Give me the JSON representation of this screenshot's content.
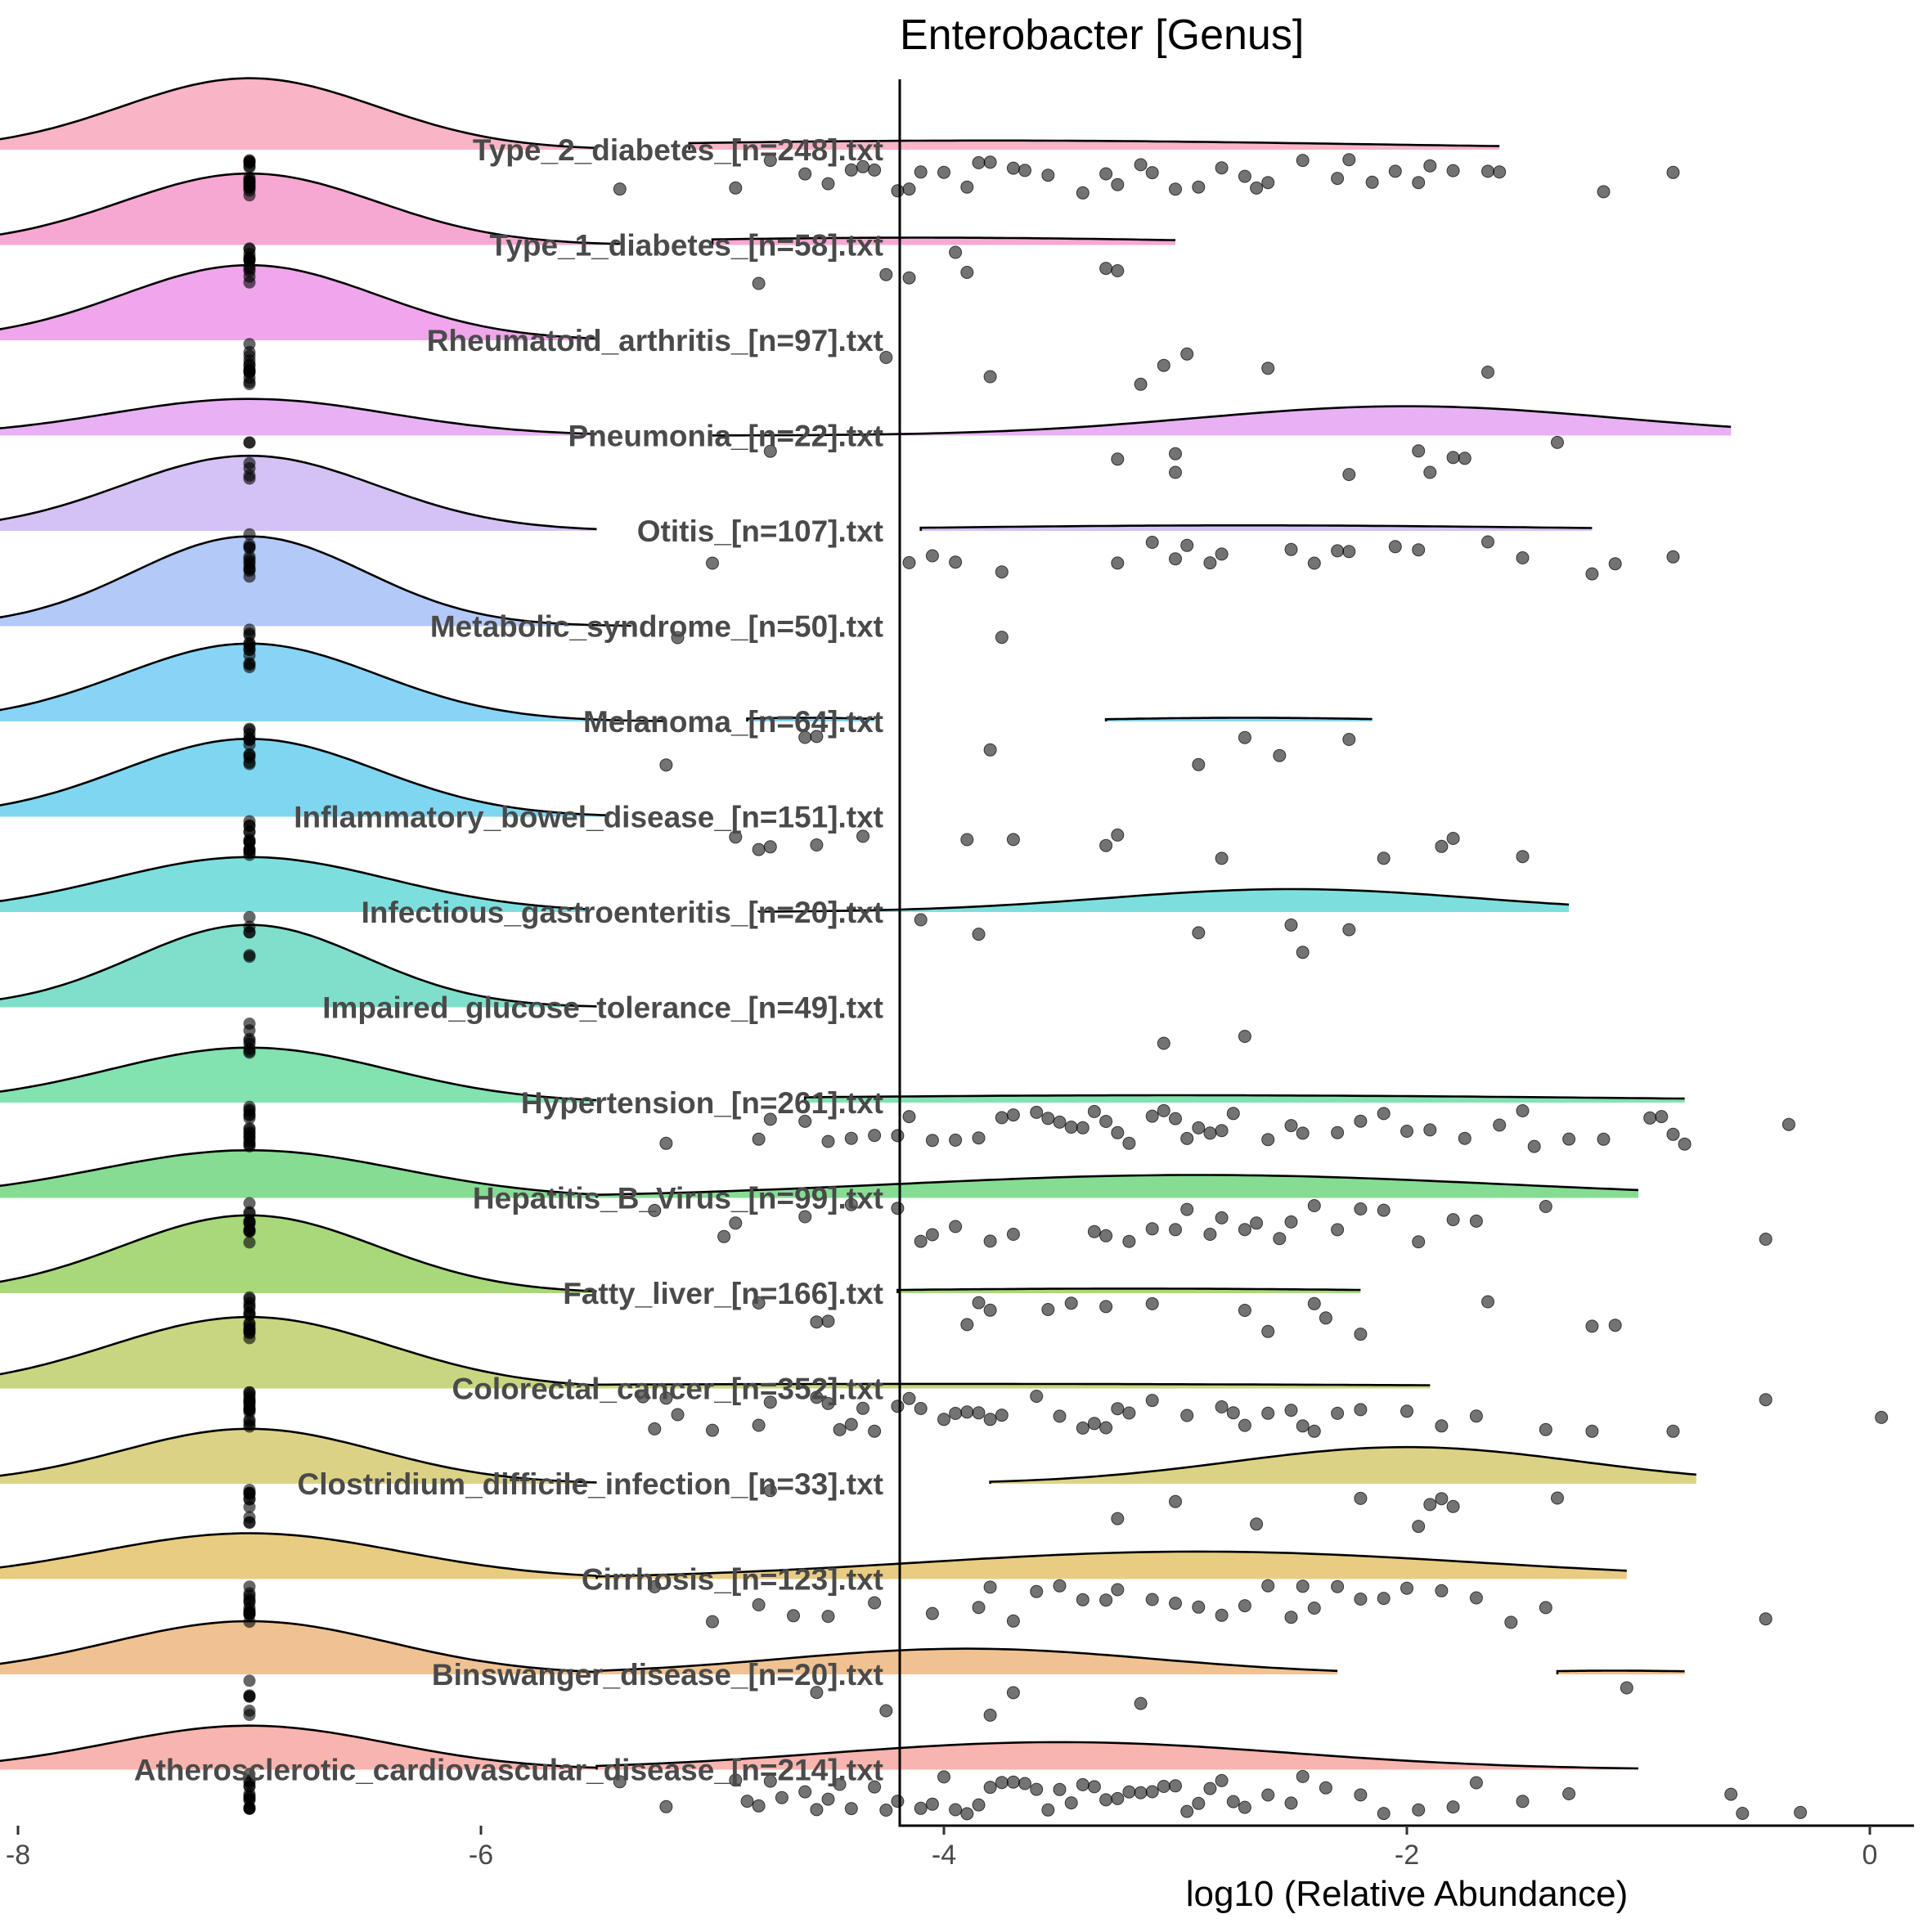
{
  "chart_data": {
    "type": "raincloud",
    "title": "Enterobacter [Genus]",
    "xlabel": "log10 (Relative Abundance)",
    "ylabel": "",
    "xlim": [
      -8.4,
      0.4
    ],
    "xticks": [
      -8,
      -6,
      -4,
      -2,
      0
    ],
    "xtick_labels": [
      "-8",
      "-6",
      "-4",
      "-2",
      "0"
    ],
    "zero_value": -7,
    "categories": [
      {
        "label": "Type_2_diabetes_[n=248].txt",
        "color": "#f9b4c6",
        "zero_count": 18,
        "density": [
          {
            "center": -7,
            "sd": 0.55,
            "h": 0.78,
            "from": -8.3,
            "to": -5.5
          },
          {
            "center": -3.8,
            "sd": 1.6,
            "h": 0.1,
            "from": -5.1,
            "to": -1.6
          }
        ],
        "points": [
          -5.4,
          -4.9,
          -4.75,
          -4.6,
          -4.5,
          -4.4,
          -4.35,
          -4.3,
          -4.2,
          -4.15,
          -4.1,
          -4.0,
          -3.9,
          -3.85,
          -3.8,
          -3.7,
          -3.65,
          -3.55,
          -3.4,
          -3.3,
          -3.25,
          -3.15,
          -3.1,
          -3.0,
          -2.9,
          -2.8,
          -2.7,
          -2.65,
          -2.6,
          -2.45,
          -2.3,
          -2.25,
          -2.15,
          -2.05,
          -1.95,
          -1.9,
          -1.8,
          -1.65,
          -1.6,
          -1.15,
          -0.85
        ]
      },
      {
        "label": "Type_1_diabetes_[n=58].txt",
        "color": "#f7a8d2",
        "zero_count": 12,
        "density": [
          {
            "center": -7,
            "sd": 0.55,
            "h": 0.78,
            "from": -8.3,
            "to": -5.4
          },
          {
            "center": -4.1,
            "sd": 1.2,
            "h": 0.08,
            "from": -5.0,
            "to": -3.0
          }
        ],
        "points": [
          -4.8,
          -4.25,
          -4.15,
          -3.95,
          -3.9,
          -3.3,
          -3.25
        ]
      },
      {
        "label": "Rheumatoid_arthritis_[n=97].txt",
        "color": "#efa6ea",
        "zero_count": 14,
        "density": [
          {
            "center": -7,
            "sd": 0.55,
            "h": 0.82,
            "from": -8.3,
            "to": -5.5
          }
        ],
        "points": [
          -4.25,
          -3.8,
          -3.15,
          -3.05,
          -2.95,
          -2.6,
          -1.65
        ]
      },
      {
        "label": "Pneumonia_[n=22].txt",
        "color": "#e7b1f4",
        "zero_count": 6,
        "density": [
          {
            "center": -7,
            "sd": 0.6,
            "h": 0.4,
            "from": -8.3,
            "to": -5.5
          },
          {
            "center": -2.0,
            "sd": 0.9,
            "h": 0.32,
            "from": -5.0,
            "to": -0.6
          }
        ],
        "points": [
          -4.75,
          -3.25,
          -3.0,
          -3.0,
          -2.25,
          -1.95,
          -1.9,
          -1.8,
          -1.75,
          -1.35
        ]
      },
      {
        "label": "Otitis_[n=107].txt",
        "color": "#d3c2f3",
        "zero_count": 12,
        "density": [
          {
            "center": -7,
            "sd": 0.55,
            "h": 0.82,
            "from": -8.3,
            "to": -5.5
          },
          {
            "center": -2.7,
            "sd": 1.3,
            "h": 0.06,
            "from": -4.1,
            "to": -1.2
          }
        ],
        "points": [
          -5.0,
          -4.15,
          -4.05,
          -3.95,
          -3.75,
          -3.25,
          -3.1,
          -3.0,
          -2.95,
          -2.85,
          -2.8,
          -2.5,
          -2.4,
          -2.3,
          -2.25,
          -2.05,
          -1.95,
          -1.65,
          -1.5,
          -1.2,
          -1.1,
          -0.85
        ]
      },
      {
        "label": "Metabolic_syndrome_[n=50].txt",
        "color": "#b3c9f7",
        "zero_count": 12,
        "density": [
          {
            "center": -7,
            "sd": 0.5,
            "h": 0.98,
            "from": -8.3,
            "to": -5.35
          }
        ],
        "points": [
          -5.15,
          -3.75
        ]
      },
      {
        "label": "Melanoma_[n=64].txt",
        "color": "#88d4f7",
        "zero_count": 12,
        "density": [
          {
            "center": -7,
            "sd": 0.55,
            "h": 0.85,
            "from": -8.3,
            "to": -5.2
          },
          {
            "center": -4.6,
            "sd": 0.35,
            "h": 0.04,
            "from": -4.85,
            "to": -4.3
          },
          {
            "center": -2.7,
            "sd": 0.6,
            "h": 0.04,
            "from": -3.3,
            "to": -2.15
          }
        ],
        "points": [
          -5.2,
          -4.55,
          -4.6,
          -3.8,
          -2.9,
          -2.7,
          -2.55,
          -2.25
        ]
      },
      {
        "label": "Inflammatory_bowel_disease_[n=151].txt",
        "color": "#7fd6f0",
        "zero_count": 14,
        "density": [
          {
            "center": -7,
            "sd": 0.55,
            "h": 0.85,
            "from": -8.3,
            "to": -5.45
          }
        ],
        "points": [
          -4.9,
          -4.8,
          -4.75,
          -4.55,
          -4.35,
          -3.9,
          -3.7,
          -3.3,
          -3.25,
          -2.8,
          -2.1,
          -1.85,
          -1.8,
          -1.5
        ]
      },
      {
        "label": "Infectious_gastroenteritis_[n=20].txt",
        "color": "#7ddfdd",
        "zero_count": 6,
        "density": [
          {
            "center": -7,
            "sd": 0.6,
            "h": 0.6,
            "from": -8.3,
            "to": -5.55
          },
          {
            "center": -2.5,
            "sd": 0.8,
            "h": 0.25,
            "from": -4.8,
            "to": -1.3
          }
        ],
        "points": [
          -4.1,
          -3.85,
          -2.9,
          -2.5,
          -2.45,
          -2.25
        ]
      },
      {
        "label": "Impaired_glucose_tolerance_[n=49].txt",
        "color": "#7fdfca",
        "zero_count": 8,
        "density": [
          {
            "center": -7,
            "sd": 0.5,
            "h": 0.9,
            "from": -8.3,
            "to": -5.5
          }
        ],
        "points": [
          -3.05,
          -2.7
        ]
      },
      {
        "label": "Hypertension_[n=261].txt",
        "color": "#82e2b0",
        "zero_count": 16,
        "density": [
          {
            "center": -7,
            "sd": 0.6,
            "h": 0.6,
            "from": -8.3,
            "to": -5.5
          },
          {
            "center": -3.0,
            "sd": 2.0,
            "h": 0.08,
            "from": -4.6,
            "to": -0.8
          }
        ],
        "points": [
          -5.2,
          -4.8,
          -4.75,
          -4.6,
          -4.5,
          -4.4,
          -4.3,
          -4.2,
          -4.15,
          -4.05,
          -3.95,
          -3.85,
          -3.75,
          -3.7,
          -3.6,
          -3.55,
          -3.5,
          -3.45,
          -3.4,
          -3.35,
          -3.3,
          -3.25,
          -3.2,
          -3.1,
          -3.05,
          -3.0,
          -2.95,
          -2.9,
          -2.85,
          -2.8,
          -2.75,
          -2.6,
          -2.5,
          -2.45,
          -2.3,
          -2.2,
          -2.1,
          -2.0,
          -1.9,
          -1.75,
          -1.6,
          -1.5,
          -1.45,
          -1.3,
          -1.15,
          -0.95,
          -0.9,
          -0.85,
          -0.8,
          -0.35
        ]
      },
      {
        "label": "Hepatitis_B_Virus_[n=99].txt",
        "color": "#85dc92",
        "zero_count": 12,
        "density": [
          {
            "center": -7,
            "sd": 0.65,
            "h": 0.52,
            "from": -8.3,
            "to": -5.5
          },
          {
            "center": -2.9,
            "sd": 1.3,
            "h": 0.25,
            "from": -5.5,
            "to": -1.0
          }
        ],
        "points": [
          -5.25,
          -4.95,
          -4.9,
          -4.6,
          -4.4,
          -4.2,
          -4.1,
          -4.05,
          -3.95,
          -3.8,
          -3.7,
          -3.35,
          -3.3,
          -3.2,
          -3.1,
          -3.0,
          -2.95,
          -2.85,
          -2.8,
          -2.7,
          -2.65,
          -2.55,
          -2.5,
          -2.4,
          -2.3,
          -2.2,
          -2.1,
          -1.95,
          -1.8,
          -1.7,
          -1.4,
          -0.45
        ]
      },
      {
        "label": "Fatty_liver_[n=166].txt",
        "color": "#a8d87a",
        "zero_count": 16,
        "density": [
          {
            "center": -7,
            "sd": 0.55,
            "h": 0.85,
            "from": -8.3,
            "to": -5.5
          },
          {
            "center": -3.2,
            "sd": 1.2,
            "h": 0.05,
            "from": -4.2,
            "to": -2.2
          }
        ],
        "points": [
          -4.8,
          -4.55,
          -4.5,
          -3.9,
          -3.85,
          -3.8,
          -3.55,
          -3.45,
          -3.3,
          -3.1,
          -2.7,
          -2.6,
          -2.4,
          -2.35,
          -2.2,
          -1.65,
          -1.2,
          -1.1
        ]
      },
      {
        "label": "Colorectal_cancer_[n=352].txt",
        "color": "#c9d680",
        "zero_count": 18,
        "density": [
          {
            "center": -7,
            "sd": 0.6,
            "h": 0.78,
            "from": -8.3,
            "to": -5.5
          },
          {
            "center": -4.0,
            "sd": 2.5,
            "h": 0.05,
            "from": -5.5,
            "to": -1.9
          }
        ],
        "points": [
          -5.3,
          -5.25,
          -5.2,
          -5.15,
          -5.0,
          -4.8,
          -4.75,
          -4.55,
          -4.5,
          -4.45,
          -4.4,
          -4.35,
          -4.3,
          -4.2,
          -4.15,
          -4.1,
          -4.0,
          -3.95,
          -3.9,
          -3.85,
          -3.8,
          -3.75,
          -3.6,
          -3.5,
          -3.4,
          -3.35,
          -3.3,
          -3.25,
          -3.2,
          -3.1,
          -2.95,
          -2.8,
          -2.75,
          -2.7,
          -2.6,
          -2.5,
          -2.45,
          -2.4,
          -2.3,
          -2.2,
          -2.0,
          -1.85,
          -1.7,
          -1.4,
          -1.2,
          -0.85,
          -0.45,
          0.05
        ]
      },
      {
        "label": "Clostridium_difficile_infection_[n=33].txt",
        "color": "#dcd286",
        "zero_count": 10,
        "density": [
          {
            "center": -7,
            "sd": 0.55,
            "h": 0.6,
            "from": -8.3,
            "to": -5.5
          },
          {
            "center": -2.0,
            "sd": 0.75,
            "h": 0.4,
            "from": -3.8,
            "to": -0.75
          }
        ],
        "points": [
          -4.75,
          -3.25,
          -3.0,
          -2.65,
          -2.2,
          -1.95,
          -1.9,
          -1.85,
          -1.8,
          -1.35
        ]
      },
      {
        "label": "Cirrhosis_[n=123].txt",
        "color": "#e8cc82",
        "zero_count": 14,
        "density": [
          {
            "center": -7,
            "sd": 0.65,
            "h": 0.5,
            "from": -8.3,
            "to": -5.5
          },
          {
            "center": -2.9,
            "sd": 1.2,
            "h": 0.3,
            "from": -5.5,
            "to": -1.05
          }
        ],
        "points": [
          -5.25,
          -5.0,
          -4.8,
          -4.65,
          -4.5,
          -4.3,
          -4.05,
          -3.85,
          -3.8,
          -3.7,
          -3.6,
          -3.5,
          -3.4,
          -3.3,
          -3.25,
          -3.1,
          -3.0,
          -2.9,
          -2.8,
          -2.7,
          -2.6,
          -2.5,
          -2.45,
          -2.4,
          -2.3,
          -2.2,
          -2.1,
          -2.0,
          -1.85,
          -1.7,
          -1.55,
          -1.4,
          -0.45
        ]
      },
      {
        "label": "Binswanger_disease_[n=20].txt",
        "color": "#f0c292",
        "zero_count": 6,
        "density": [
          {
            "center": -7,
            "sd": 0.6,
            "h": 0.58,
            "from": -8.3,
            "to": -5.5
          },
          {
            "center": -3.9,
            "sd": 0.8,
            "h": 0.28,
            "from": -5.5,
            "to": -2.3
          },
          {
            "center": -1.1,
            "sd": 0.5,
            "h": 0.04,
            "from": -1.35,
            "to": -0.8
          }
        ],
        "points": [
          -4.55,
          -4.25,
          -3.8,
          -3.7,
          -3.15,
          -1.05
        ]
      },
      {
        "label": "Atherosclerotic_cardiovascular_disease_[n=214].txt",
        "color": "#f8b4ae",
        "zero_count": 14,
        "density": [
          {
            "center": -7,
            "sd": 0.6,
            "h": 0.48,
            "from": -8.3,
            "to": -5.5
          },
          {
            "center": -3.5,
            "sd": 1.0,
            "h": 0.3,
            "from": -5.5,
            "to": -1.0
          }
        ],
        "points": [
          -5.4,
          -5.2,
          -4.9,
          -4.85,
          -4.8,
          -4.75,
          -4.7,
          -4.6,
          -4.55,
          -4.5,
          -4.45,
          -4.4,
          -4.3,
          -4.25,
          -4.2,
          -4.1,
          -4.05,
          -4.0,
          -3.95,
          -3.9,
          -3.85,
          -3.8,
          -3.75,
          -3.7,
          -3.65,
          -3.6,
          -3.55,
          -3.5,
          -3.45,
          -3.4,
          -3.35,
          -3.3,
          -3.25,
          -3.2,
          -3.15,
          -3.1,
          -3.05,
          -3.0,
          -2.95,
          -2.9,
          -2.85,
          -2.8,
          -2.75,
          -2.7,
          -2.6,
          -2.5,
          -2.45,
          -2.35,
          -2.2,
          -2.1,
          -1.95,
          -1.8,
          -1.7,
          -1.5,
          -1.3,
          -0.6,
          -0.55,
          -0.3
        ]
      }
    ]
  }
}
